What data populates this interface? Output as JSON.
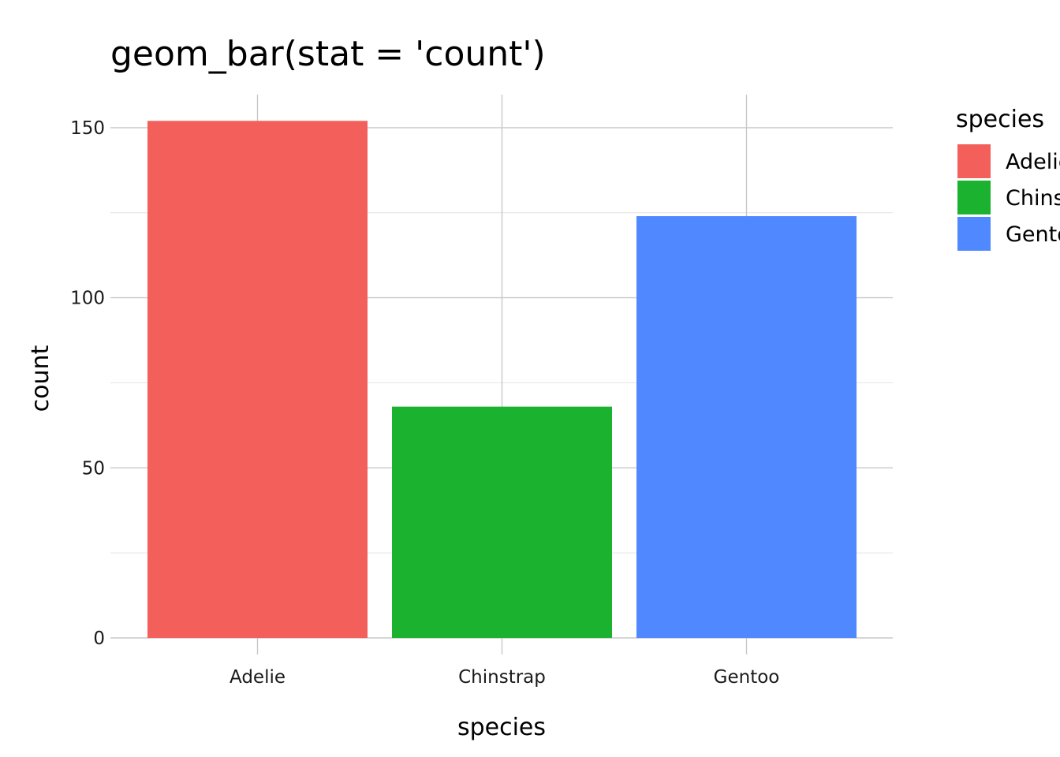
{
  "chart_data": {
    "type": "bar",
    "title": "geom_bar(stat = 'count')",
    "xlabel": "species",
    "ylabel": "count",
    "categories": [
      "Adelie",
      "Chinstrap",
      "Gentoo"
    ],
    "values": [
      152,
      68,
      124
    ],
    "colors": [
      "#F35F5B",
      "#1AB22E",
      "#5088FF"
    ],
    "ylim": [
      0,
      160
    ],
    "yticks": [
      0,
      50,
      100,
      150
    ],
    "ytick_labels": [
      "0",
      "50",
      "100",
      "150"
    ],
    "grid": true,
    "legend": {
      "title": "species",
      "position": "right",
      "entries": [
        "Adelie",
        "Chinstrap",
        "Gentoo"
      ]
    }
  }
}
